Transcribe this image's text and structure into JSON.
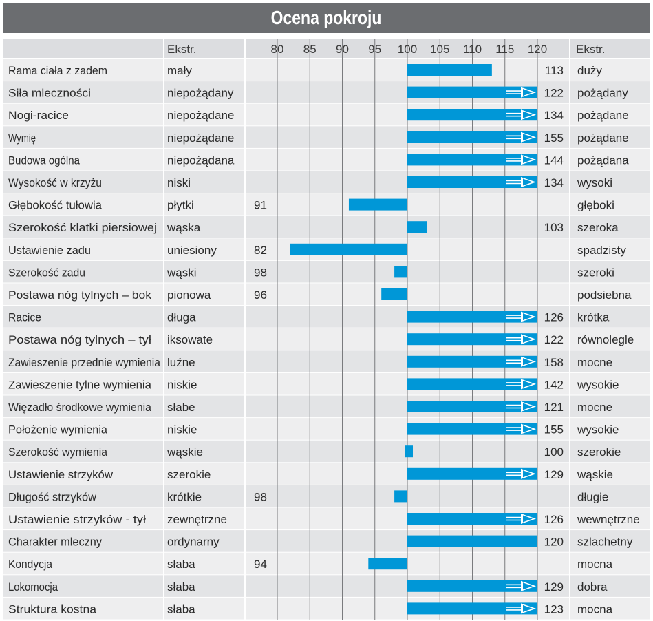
{
  "chart_data": {
    "type": "bar",
    "title": "Ocena pokroju",
    "axis_ticks": [
      "80",
      "85",
      "90",
      "95",
      "100",
      "105",
      "110",
      "115",
      "120"
    ],
    "x_range": [
      80,
      120
    ],
    "baseline": 100,
    "left_header": "Ekstr.",
    "right_header": "Ekstr.",
    "bar_color": "#0097d7",
    "overflow_marker": "arrow",
    "rows": [
      {
        "trait": "Rama ciała z zadem",
        "low": "mały",
        "value": 113,
        "high": "duży"
      },
      {
        "trait": "Siła mleczności",
        "low": "niepożądany",
        "value": 122,
        "high": "pożądany"
      },
      {
        "trait": "Nogi-racice",
        "low": "niepożądane",
        "value": 134,
        "high": "pożądane"
      },
      {
        "trait": "Wymię",
        "low": "niepożądane",
        "value": 155,
        "high": "pożądane"
      },
      {
        "trait": "Budowa ogólna",
        "low": "niepożądana",
        "value": 144,
        "high": "pożądana"
      },
      {
        "trait": "Wysokość w krzyżu",
        "low": "niski",
        "value": 134,
        "high": "wysoki"
      },
      {
        "trait": "Głębokość tułowia",
        "low": "płytki",
        "value": 91,
        "high": "głęboki"
      },
      {
        "trait": "Szerokość klatki piersiowej",
        "low": "wąska",
        "value": 103,
        "high": "szeroka"
      },
      {
        "trait": "Ustawienie zadu",
        "low": "uniesiony",
        "value": 82,
        "high": "spadzisty"
      },
      {
        "trait": "Szerokość zadu",
        "low": "wąski",
        "value": 98,
        "high": "szeroki"
      },
      {
        "trait": "Postawa nóg tylnych –  bok",
        "low": "pionowa",
        "value": 96,
        "high": "podsiebna"
      },
      {
        "trait": "Racice",
        "low": "długa",
        "value": 126,
        "high": "krótka"
      },
      {
        "trait": "Postawa nóg tylnych –  tył",
        "low": "iksowate",
        "value": 122,
        "high": "równolegle"
      },
      {
        "trait": "Zawieszenie przednie wymienia",
        "low": "luźne",
        "value": 158,
        "high": "mocne"
      },
      {
        "trait": "Zawieszenie tylne wymienia",
        "low": "niskie",
        "value": 142,
        "high": "wysokie"
      },
      {
        "trait": "Więzadło środkowe wymienia",
        "low": "słabe",
        "value": 121,
        "high": "mocne"
      },
      {
        "trait": "Położenie wymienia",
        "low": "niskie",
        "value": 155,
        "high": "wysokie"
      },
      {
        "trait": "Szerokość wymienia",
        "low": "wąskie",
        "value": 100,
        "high": "szerokie"
      },
      {
        "trait": "Ustawienie strzyków",
        "low": "szerokie",
        "value": 129,
        "high": "wąskie"
      },
      {
        "trait": "Długość strzyków",
        "low": "krótkie",
        "value": 98,
        "high": "długie"
      },
      {
        "trait": "Ustawienie strzyków - tył",
        "low": "zewnętrzne",
        "value": 126,
        "high": "wewnętrzne"
      },
      {
        "trait": "Charakter mleczny",
        "low": "ordynarny",
        "value": 120,
        "high": "szlachetny"
      },
      {
        "trait": "Kondycja",
        "low": "słaba",
        "value": 94,
        "high": "mocna"
      },
      {
        "trait": "Lokomocja",
        "low": "słaba",
        "value": 129,
        "high": "dobra"
      },
      {
        "trait": "Struktura kostna",
        "low": "słaba",
        "value": 123,
        "high": "mocna"
      }
    ]
  }
}
